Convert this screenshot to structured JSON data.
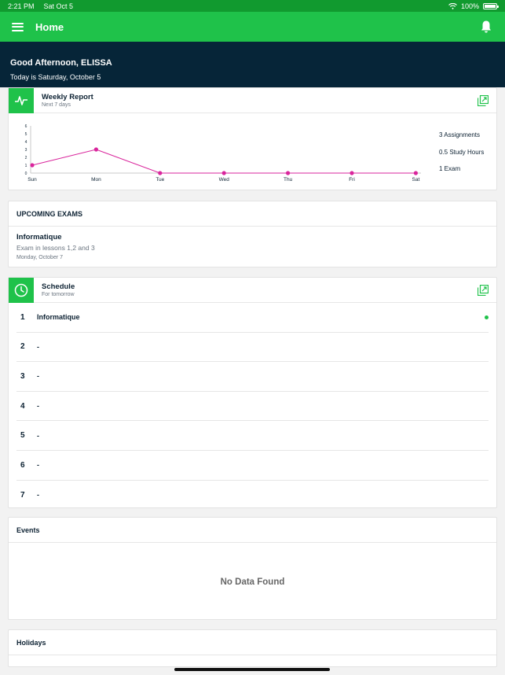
{
  "status_bar": {
    "time": "2:21 PM",
    "date": "Sat Oct 5",
    "battery": "100%"
  },
  "header": {
    "title": "Home",
    "menu_icon": "hamburger-icon",
    "notification_icon": "bell-icon"
  },
  "greeting": {
    "line1": "Good Afternoon, ELISSA",
    "line2": "Today is Saturday, October 5"
  },
  "weekly_report": {
    "title": "Weekly Report",
    "subtitle": "Next 7 days",
    "stats": [
      "3 Assignments",
      "0.5  Study Hours",
      "1 Exam"
    ],
    "chart_data": {
      "type": "line",
      "categories": [
        "Sun",
        "Mon",
        "Tue",
        "Wed",
        "Thu",
        "Fri",
        "Sat"
      ],
      "series": [
        {
          "values": [
            1,
            3,
            0,
            0,
            0,
            0,
            0
          ]
        }
      ],
      "y_ticks": [
        0,
        1,
        2,
        3,
        4,
        5,
        6
      ],
      "ylim": [
        0,
        6
      ],
      "grid": false,
      "color": "#d9259c"
    }
  },
  "upcoming_exams": {
    "title": "UPCOMING EXAMS",
    "items": [
      {
        "title": "Informatique",
        "description": "Exam in lessons 1,2 and 3",
        "date": "Monday, October 7"
      }
    ]
  },
  "schedule": {
    "title": "Schedule",
    "subtitle": "For tomorrow",
    "rows": [
      {
        "num": "1",
        "label": "Informatique",
        "active": true
      },
      {
        "num": "2",
        "label": "-"
      },
      {
        "num": "3",
        "label": "-"
      },
      {
        "num": "4",
        "label": "-"
      },
      {
        "num": "5",
        "label": "-"
      },
      {
        "num": "6",
        "label": "-"
      },
      {
        "num": "7",
        "label": "-"
      }
    ]
  },
  "events": {
    "title": "Events",
    "empty_text": "No Data Found"
  },
  "holidays": {
    "title": "Holidays"
  },
  "colors": {
    "accent": "#1fc24a",
    "header_dark": "#062538",
    "status_bar": "#119a2f",
    "chart_line": "#d9259c"
  }
}
